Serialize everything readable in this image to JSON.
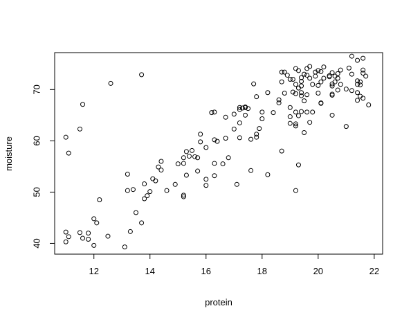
{
  "chart_data": {
    "type": "scatter",
    "title": "",
    "xlabel": "protein",
    "ylabel": "moisture",
    "xlim": [
      10.6,
      22.3
    ],
    "ylim": [
      37.9,
      77.2
    ],
    "xticks": [
      12,
      14,
      16,
      18,
      20,
      22
    ],
    "yticks": [
      40,
      50,
      60,
      70
    ],
    "grid": false,
    "marker": "open-circle",
    "points": [
      [
        11.0,
        60.7
      ],
      [
        11.0,
        42.2
      ],
      [
        11.0,
        40.3
      ],
      [
        11.1,
        57.6
      ],
      [
        11.1,
        41.3
      ],
      [
        11.5,
        62.3
      ],
      [
        11.5,
        42.1
      ],
      [
        11.6,
        67.1
      ],
      [
        11.6,
        41.0
      ],
      [
        11.8,
        42.0
      ],
      [
        11.8,
        40.8
      ],
      [
        12.0,
        44.8
      ],
      [
        12.0,
        39.6
      ],
      [
        12.1,
        44.0
      ],
      [
        12.2,
        48.5
      ],
      [
        12.5,
        41.4
      ],
      [
        12.6,
        71.2
      ],
      [
        13.1,
        39.3
      ],
      [
        13.2,
        53.5
      ],
      [
        13.2,
        50.3
      ],
      [
        13.3,
        42.3
      ],
      [
        13.4,
        50.5
      ],
      [
        13.5,
        46.0
      ],
      [
        13.7,
        72.9
      ],
      [
        13.7,
        44.0
      ],
      [
        13.8,
        51.6
      ],
      [
        13.8,
        48.7
      ],
      [
        13.9,
        49.3
      ],
      [
        14.0,
        50.1
      ],
      [
        14.1,
        52.6
      ],
      [
        14.2,
        52.2
      ],
      [
        14.3,
        54.9
      ],
      [
        14.4,
        56.0
      ],
      [
        14.4,
        54.3
      ],
      [
        14.6,
        50.3
      ],
      [
        14.9,
        51.5
      ],
      [
        15.0,
        55.5
      ],
      [
        15.2,
        56.7
      ],
      [
        15.2,
        55.6
      ],
      [
        15.2,
        49.4
      ],
      [
        15.2,
        49.1
      ],
      [
        15.3,
        57.9
      ],
      [
        15.3,
        53.3
      ],
      [
        15.4,
        57.0
      ],
      [
        15.5,
        58.1
      ],
      [
        15.6,
        56.9
      ],
      [
        15.7,
        56.7
      ],
      [
        15.7,
        54.1
      ],
      [
        15.8,
        61.3
      ],
      [
        15.8,
        59.8
      ],
      [
        16.0,
        58.7
      ],
      [
        16.0,
        52.5
      ],
      [
        16.0,
        51.3
      ],
      [
        16.2,
        65.5
      ],
      [
        16.3,
        65.6
      ],
      [
        16.3,
        60.2
      ],
      [
        16.3,
        55.6
      ],
      [
        16.3,
        53.2
      ],
      [
        16.4,
        59.9
      ],
      [
        16.6,
        55.5
      ],
      [
        16.7,
        64.6
      ],
      [
        16.7,
        60.5
      ],
      [
        16.8,
        56.7
      ],
      [
        17.0,
        62.3
      ],
      [
        17.0,
        65.2
      ],
      [
        17.1,
        51.5
      ],
      [
        17.2,
        66.5
      ],
      [
        17.2,
        66.1
      ],
      [
        17.2,
        63.5
      ],
      [
        17.2,
        60.6
      ],
      [
        17.3,
        66.4
      ],
      [
        17.4,
        66.5
      ],
      [
        17.4,
        65.0
      ],
      [
        17.4,
        66.6
      ],
      [
        17.5,
        66.3
      ],
      [
        17.6,
        60.3
      ],
      [
        17.6,
        54.2
      ],
      [
        17.7,
        71.1
      ],
      [
        17.8,
        68.6
      ],
      [
        17.8,
        61.3
      ],
      [
        17.8,
        60.7
      ],
      [
        17.9,
        62.4
      ],
      [
        18.0,
        65.6
      ],
      [
        18.0,
        64.3
      ],
      [
        18.2,
        69.4
      ],
      [
        18.2,
        53.4
      ],
      [
        18.4,
        65.5
      ],
      [
        18.6,
        68.0
      ],
      [
        18.6,
        67.4
      ],
      [
        18.7,
        73.4
      ],
      [
        18.7,
        71.5
      ],
      [
        18.7,
        58.0
      ],
      [
        18.8,
        73.4
      ],
      [
        18.8,
        69.3
      ],
      [
        18.9,
        72.8
      ],
      [
        19.0,
        72.0
      ],
      [
        19.0,
        66.5
      ],
      [
        19.0,
        64.7
      ],
      [
        19.0,
        63.4
      ],
      [
        19.1,
        72.0
      ],
      [
        19.1,
        69.5
      ],
      [
        19.2,
        74.1
      ],
      [
        19.2,
        71.0
      ],
      [
        19.2,
        69.2
      ],
      [
        19.2,
        65.6
      ],
      [
        19.2,
        63.3
      ],
      [
        19.2,
        62.9
      ],
      [
        19.2,
        50.3
      ],
      [
        19.3,
        73.7
      ],
      [
        19.3,
        70.3
      ],
      [
        19.3,
        64.9
      ],
      [
        19.3,
        55.3
      ],
      [
        19.4,
        72.3
      ],
      [
        19.4,
        71.6
      ],
      [
        19.4,
        70.7
      ],
      [
        19.4,
        69.4
      ],
      [
        19.4,
        68.8
      ],
      [
        19.4,
        65.7
      ],
      [
        19.5,
        73.0
      ],
      [
        19.5,
        67.8
      ],
      [
        19.5,
        61.6
      ],
      [
        19.6,
        74.1
      ],
      [
        19.6,
        72.8
      ],
      [
        19.6,
        69.0
      ],
      [
        19.6,
        65.6
      ],
      [
        19.7,
        74.5
      ],
      [
        19.7,
        72.2
      ],
      [
        19.7,
        63.6
      ],
      [
        19.8,
        71.0
      ],
      [
        19.8,
        65.6
      ],
      [
        19.9,
        73.4
      ],
      [
        19.9,
        72.6
      ],
      [
        20.0,
        73.7
      ],
      [
        20.0,
        70.8
      ],
      [
        20.0,
        69.3
      ],
      [
        20.1,
        73.5
      ],
      [
        20.1,
        71.5
      ],
      [
        20.1,
        67.4
      ],
      [
        20.1,
        67.3
      ],
      [
        20.2,
        74.4
      ],
      [
        20.2,
        72.2
      ],
      [
        20.4,
        72.7
      ],
      [
        20.4,
        72.5
      ],
      [
        20.5,
        73.3
      ],
      [
        20.5,
        71.1
      ],
      [
        20.5,
        70.7
      ],
      [
        20.5,
        69.1
      ],
      [
        20.5,
        68.9
      ],
      [
        20.5,
        65.0
      ],
      [
        20.6,
        72.6
      ],
      [
        20.6,
        71.5
      ],
      [
        20.7,
        73.1
      ],
      [
        20.7,
        72.2
      ],
      [
        20.7,
        69.9
      ],
      [
        20.8,
        73.8
      ],
      [
        20.8,
        71.0
      ],
      [
        21.0,
        70.1
      ],
      [
        21.0,
        62.8
      ],
      [
        21.1,
        74.2
      ],
      [
        21.2,
        76.5
      ],
      [
        21.2,
        73.0
      ],
      [
        21.2,
        69.8
      ],
      [
        21.4,
        75.7
      ],
      [
        21.4,
        71.7
      ],
      [
        21.4,
        71.0
      ],
      [
        21.4,
        69.4
      ],
      [
        21.4,
        67.9
      ],
      [
        21.5,
        71.5
      ],
      [
        21.5,
        70.9
      ],
      [
        21.5,
        68.7
      ],
      [
        21.6,
        76.1
      ],
      [
        21.6,
        73.8
      ],
      [
        21.6,
        73.2
      ],
      [
        21.6,
        68.3
      ],
      [
        21.7,
        72.6
      ],
      [
        21.8,
        67.0
      ]
    ]
  }
}
